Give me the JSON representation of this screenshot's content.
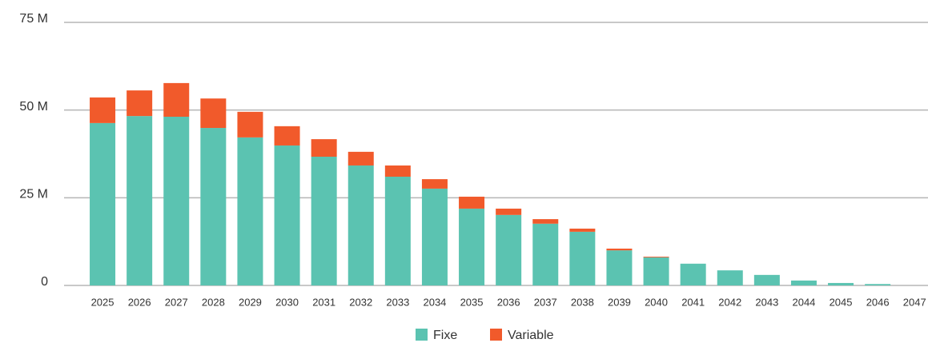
{
  "chart_data": {
    "type": "bar",
    "stacked": true,
    "categories": [
      "2025",
      "2026",
      "2027",
      "2028",
      "2029",
      "2030",
      "2031",
      "2032",
      "2033",
      "2034",
      "2035",
      "2036",
      "2037",
      "2038",
      "2039",
      "2040",
      "2041",
      "2042",
      "2043",
      "2044",
      "2045",
      "2046",
      "2047"
    ],
    "series": [
      {
        "name": "Fixe",
        "color": "#5bc3b1",
        "values": [
          46.3,
          48.3,
          48.1,
          44.9,
          42.2,
          39.9,
          36.7,
          34.2,
          31.0,
          27.6,
          21.9,
          20.1,
          17.6,
          15.3,
          10.0,
          8.0,
          6.2,
          4.3,
          3.0,
          1.4,
          0.7,
          0.4,
          0
        ]
      },
      {
        "name": "Variable",
        "color": "#f15a2b",
        "values": [
          7.3,
          7.3,
          9.6,
          8.4,
          7.3,
          5.5,
          5.0,
          3.9,
          3.2,
          2.7,
          3.4,
          1.8,
          1.3,
          0.9,
          0.5,
          0.2,
          0,
          0,
          0,
          0,
          0,
          0,
          0
        ]
      }
    ],
    "ylim": [
      0,
      75
    ],
    "yticks": [
      0,
      {
        "value": 25,
        "label": "25 M"
      },
      {
        "value": 50,
        "label": "50 M"
      },
      {
        "value": 75,
        "label": "75 M"
      }
    ],
    "grid": true,
    "legend": "bottom"
  }
}
